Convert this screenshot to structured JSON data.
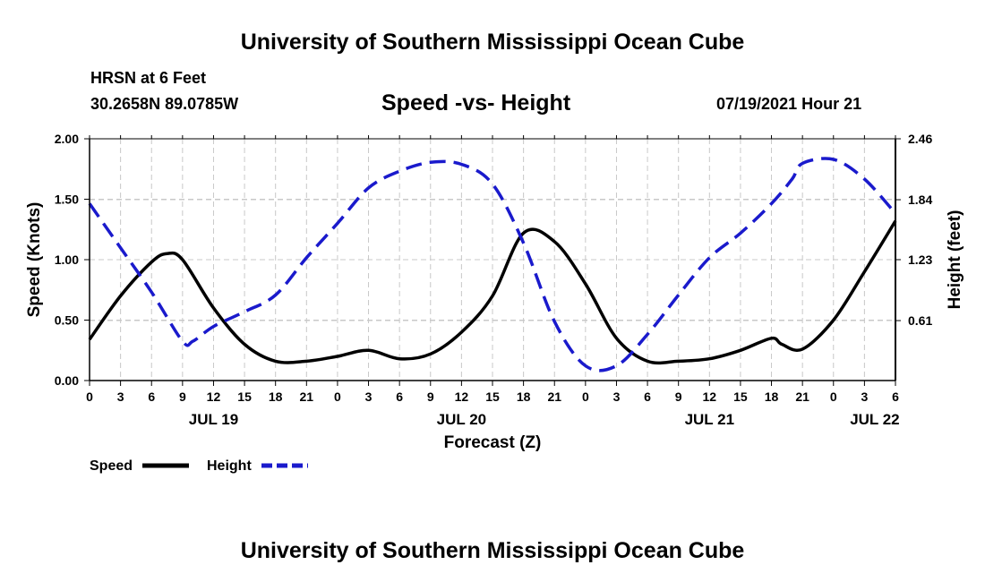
{
  "header": {
    "title": "University of Southern Mississippi Ocean Cube",
    "station": "HRSN at 6 Feet",
    "coords": "30.2658N  89.0785W",
    "subtitle": "Speed -vs- Height",
    "date": "07/19/2021 Hour 21"
  },
  "footer": {
    "title": "University of Southern Mississippi Ocean Cube"
  },
  "chart_data": {
    "type": "line",
    "title": "Speed -vs- Height",
    "xlabel": "Forecast (Z)",
    "ylabel": "Speed (Knots)",
    "y2label": "Height (feet)",
    "xlim": [
      0,
      78
    ],
    "ylim": [
      0,
      2.0
    ],
    "y2lim": [
      0,
      2.46
    ],
    "grid": true,
    "x_ticks": [
      0,
      3,
      6,
      9,
      12,
      15,
      18,
      21,
      24,
      27,
      30,
      33,
      36,
      39,
      42,
      45,
      48,
      51,
      54,
      57,
      60,
      63,
      66,
      69,
      72,
      75,
      78
    ],
    "x_tick_labels": [
      "0",
      "3",
      "6",
      "9",
      "12",
      "15",
      "18",
      "21",
      "0",
      "3",
      "6",
      "9",
      "12",
      "15",
      "18",
      "21",
      "0",
      "3",
      "6",
      "9",
      "12",
      "15",
      "18",
      "21",
      "0",
      "3",
      "6"
    ],
    "date_labels": [
      {
        "x": 12,
        "label": "JUL 19"
      },
      {
        "x": 36,
        "label": "JUL 20"
      },
      {
        "x": 60,
        "label": "JUL 21"
      },
      {
        "x": 76,
        "label": "JUL 22"
      }
    ],
    "y_ticks": [
      0.0,
      0.5,
      1.0,
      1.5,
      2.0
    ],
    "y_tick_labels": [
      "0.00",
      "0.50",
      "1.00",
      "1.50",
      "2.00"
    ],
    "y2_ticks": [
      0.61,
      1.23,
      1.84,
      2.46
    ],
    "y2_tick_labels": [
      "0.61",
      "1.23",
      "1.84",
      "2.46"
    ],
    "series": [
      {
        "name": "Speed",
        "axis": "left",
        "color": "#000000",
        "style": "solid",
        "x": [
          0,
          3,
          6,
          7.5,
          9,
          12,
          15,
          18,
          21,
          24,
          27,
          30,
          33,
          36,
          39,
          42,
          45,
          48,
          51,
          54,
          57,
          60,
          63,
          66,
          67,
          69,
          72,
          75,
          78
        ],
        "values": [
          0.34,
          0.7,
          0.98,
          1.05,
          1.0,
          0.6,
          0.3,
          0.16,
          0.16,
          0.2,
          0.25,
          0.18,
          0.22,
          0.4,
          0.7,
          1.22,
          1.15,
          0.8,
          0.35,
          0.16,
          0.16,
          0.18,
          0.25,
          0.35,
          0.3,
          0.26,
          0.5,
          0.9,
          1.32
        ]
      },
      {
        "name": "Height",
        "axis": "right",
        "color": "#1a1acc",
        "style": "dashed",
        "x": [
          0,
          3,
          6,
          9,
          10,
          12,
          15,
          18,
          21,
          24,
          27,
          30,
          33,
          36,
          39,
          42,
          45,
          48,
          51,
          54,
          57,
          60,
          63,
          66,
          68,
          69,
          72,
          75,
          78
        ],
        "values": [
          1.8,
          1.35,
          0.9,
          0.4,
          0.4,
          0.55,
          0.7,
          0.87,
          1.25,
          1.6,
          1.96,
          2.13,
          2.22,
          2.2,
          2.0,
          1.4,
          0.6,
          0.15,
          0.15,
          0.47,
          0.87,
          1.25,
          1.5,
          1.8,
          2.05,
          2.21,
          2.25,
          2.05,
          1.7
        ]
      }
    ],
    "legend": [
      {
        "label": "Speed",
        "color": "#000000",
        "style": "solid"
      },
      {
        "label": "Height",
        "color": "#1a1acc",
        "style": "dashed"
      }
    ],
    "legend_position": "bottom-left"
  }
}
